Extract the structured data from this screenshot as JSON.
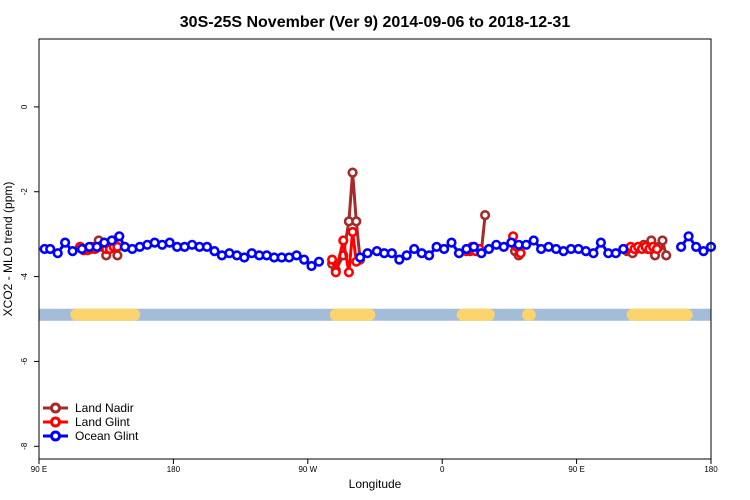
{
  "chart_data": {
    "type": "line",
    "title": "30S-25S November (Ver 9)   2014-09-06 to 2018-12-31",
    "xlabel": "Longitude",
    "ylabel": "XCO2 - MLO trend (ppm)",
    "xlim": [
      90,
      450
    ],
    "ylim": [
      -8.3,
      1.6
    ],
    "x_ticks": [
      {
        "value": 90,
        "label": "90 E"
      },
      {
        "value": 162,
        "label": "180"
      },
      {
        "value": 234,
        "label": "90 W"
      },
      {
        "value": 306,
        "label": "0"
      },
      {
        "value": 378,
        "label": "90 E"
      },
      {
        "value": 450,
        "label": "180"
      }
    ],
    "y_ticks": [
      {
        "value": 0,
        "label": "0"
      },
      {
        "value": -2,
        "label": "-2"
      },
      {
        "value": -4,
        "label": "-4"
      },
      {
        "value": -6,
        "label": "-6"
      },
      {
        "value": -8,
        "label": "-8"
      }
    ],
    "land_band": {
      "y": -4.9,
      "ocean_color": "#a3bcd8",
      "land_color": "#fbd46e",
      "land_ranges": [
        [
          110,
          141
        ],
        [
          249,
          267
        ],
        [
          317,
          331
        ],
        [
          352,
          353
        ],
        [
          408,
          437
        ]
      ]
    },
    "series": [
      {
        "name": "Land Nadir",
        "color": "#a52a2a",
        "segments": [
          [
            [
              112,
              -3.3
            ],
            [
              114,
              -3.35
            ],
            [
              116,
              -3.38
            ],
            [
              118,
              -3.35
            ],
            [
              120,
              -3.3
            ],
            [
              122,
              -3.15
            ],
            [
              124,
              -3.25
            ],
            [
              126,
              -3.5
            ],
            [
              128,
              -3.2
            ],
            [
              130,
              -3.15
            ],
            [
              132,
              -3.5
            ]
          ],
          [
            [
              247,
              -3.7
            ],
            [
              249,
              -3.85
            ],
            [
              253,
              -3.5
            ],
            [
              256,
              -2.7
            ],
            [
              258,
              -1.55
            ],
            [
              260,
              -2.7
            ],
            [
              262,
              -3.6
            ]
          ],
          [
            [
              321,
              -3.4
            ],
            [
              323,
              -3.3
            ],
            [
              325,
              -3.35
            ],
            [
              327,
              -3.4
            ],
            [
              329,
              -2.55
            ]
          ],
          [
            [
              345,
              -3.4
            ],
            [
              347,
              -3.5
            ]
          ],
          [
            [
              405,
              -3.4
            ],
            [
              408,
              -3.45
            ],
            [
              410,
              -3.35
            ],
            [
              412,
              -3.3
            ],
            [
              414,
              -3.25
            ],
            [
              416,
              -3.35
            ],
            [
              418,
              -3.15
            ],
            [
              420,
              -3.5
            ],
            [
              422,
              -3.3
            ],
            [
              424,
              -3.15
            ],
            [
              426,
              -3.5
            ]
          ]
        ]
      },
      {
        "name": "Land Glint",
        "color": "#ff0000",
        "segments": [
          [
            [
              112,
              -3.3
            ],
            [
              114,
              -3.38
            ],
            [
              116,
              -3.35
            ],
            [
              118,
              -3.3
            ],
            [
              120,
              -3.35
            ],
            [
              122,
              -3.3
            ],
            [
              124,
              -3.3
            ],
            [
              126,
              -3.35
            ],
            [
              128,
              -3.35
            ],
            [
              130,
              -3.3
            ],
            [
              132,
              -3.3
            ]
          ],
          [
            [
              247,
              -3.6
            ],
            [
              249,
              -3.9
            ],
            [
              253,
              -3.15
            ],
            [
              256,
              -3.9
            ],
            [
              258,
              -2.95
            ],
            [
              260,
              -3.65
            ]
          ],
          [
            [
              319,
              -3.4
            ],
            [
              322,
              -3.3
            ],
            [
              324,
              -3.4
            ],
            [
              326,
              -3.35
            ]
          ],
          [
            [
              344,
              -3.05
            ],
            [
              346,
              -3.3
            ],
            [
              348,
              -3.45
            ]
          ],
          [
            [
              405,
              -3.35
            ],
            [
              407,
              -3.3
            ],
            [
              409,
              -3.35
            ],
            [
              411,
              -3.3
            ],
            [
              413,
              -3.35
            ],
            [
              415,
              -3.3
            ],
            [
              417,
              -3.35
            ],
            [
              419,
              -3.3
            ],
            [
              421,
              -3.35
            ]
          ]
        ]
      },
      {
        "name": "Ocean Glint",
        "color": "#0000ff",
        "segments": [
          [
            [
              93,
              -3.35
            ],
            [
              96,
              -3.35
            ],
            [
              100,
              -3.45
            ],
            [
              104,
              -3.2
            ],
            [
              108,
              -3.4
            ],
            [
              113,
              -3.35
            ],
            [
              117,
              -3.3
            ],
            [
              121,
              -3.3
            ],
            [
              125,
              -3.2
            ],
            [
              129,
              -3.15
            ],
            [
              133,
              -3.05
            ],
            [
              136,
              -3.3
            ],
            [
              140,
              -3.35
            ],
            [
              144,
              -3.3
            ],
            [
              148,
              -3.25
            ],
            [
              152,
              -3.2
            ],
            [
              156,
              -3.25
            ],
            [
              160,
              -3.2
            ],
            [
              164,
              -3.3
            ],
            [
              168,
              -3.3
            ],
            [
              172,
              -3.25
            ],
            [
              176,
              -3.3
            ],
            [
              180,
              -3.3
            ],
            [
              184,
              -3.4
            ],
            [
              188,
              -3.5
            ],
            [
              192,
              -3.45
            ],
            [
              196,
              -3.5
            ],
            [
              200,
              -3.55
            ],
            [
              204,
              -3.45
            ],
            [
              208,
              -3.5
            ],
            [
              212,
              -3.5
            ],
            [
              216,
              -3.55
            ],
            [
              220,
              -3.55
            ],
            [
              224,
              -3.55
            ],
            [
              228,
              -3.5
            ],
            [
              232,
              -3.6
            ],
            [
              236,
              -3.75
            ],
            [
              240,
              -3.65
            ]
          ],
          [
            [
              262,
              -3.55
            ],
            [
              266,
              -3.45
            ],
            [
              271,
              -3.4
            ],
            [
              275,
              -3.45
            ],
            [
              279,
              -3.45
            ],
            [
              283,
              -3.6
            ],
            [
              287,
              -3.5
            ],
            [
              291,
              -3.35
            ],
            [
              295,
              -3.45
            ],
            [
              299,
              -3.5
            ],
            [
              303,
              -3.3
            ],
            [
              307,
              -3.35
            ],
            [
              311,
              -3.2
            ],
            [
              315,
              -3.45
            ],
            [
              319,
              -3.35
            ],
            [
              323,
              -3.3
            ],
            [
              327,
              -3.45
            ],
            [
              331,
              -3.35
            ],
            [
              335,
              -3.25
            ],
            [
              339,
              -3.3
            ],
            [
              343,
              -3.2
            ],
            [
              347,
              -3.25
            ],
            [
              351,
              -3.25
            ],
            [
              355,
              -3.15
            ],
            [
              359,
              -3.35
            ],
            [
              363,
              -3.3
            ],
            [
              367,
              -3.35
            ],
            [
              371,
              -3.4
            ],
            [
              375,
              -3.35
            ],
            [
              379,
              -3.35
            ],
            [
              383,
              -3.4
            ],
            [
              387,
              -3.45
            ],
            [
              391,
              -3.2
            ],
            [
              395,
              -3.45
            ],
            [
              399,
              -3.45
            ],
            [
              403,
              -3.35
            ]
          ],
          [
            [
              434,
              -3.3
            ],
            [
              438,
              -3.05
            ],
            [
              442,
              -3.3
            ],
            [
              446,
              -3.4
            ],
            [
              450,
              -3.3
            ]
          ]
        ]
      }
    ],
    "legend": {
      "position": "bottom-left",
      "entries": [
        "Land Nadir",
        "Land Glint",
        "Ocean Glint"
      ]
    }
  }
}
